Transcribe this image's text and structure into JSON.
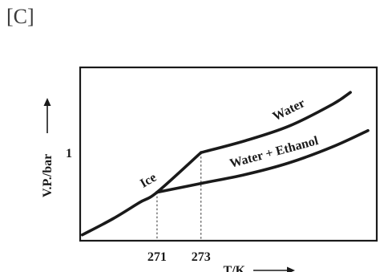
{
  "panel_label": "[C]",
  "chart_data": {
    "type": "line",
    "xlabel": "T/K",
    "ylabel": "V.P./bar",
    "x_ticks": [
      {
        "value": 271,
        "label": "271"
      },
      {
        "value": 273,
        "label": "273"
      }
    ],
    "y_ticks": [
      {
        "value": 1,
        "label": "1"
      }
    ],
    "xlim": [
      267.5,
      281
    ],
    "ylim": [
      0.4,
      1.58
    ],
    "axis_arrows": true,
    "grid": false,
    "series": [
      {
        "name": "Ice",
        "x": [
          267.6,
          269.0,
          270.2,
          271.0,
          273.0
        ],
        "y": [
          0.44,
          0.55,
          0.66,
          0.73,
          1.0
        ]
      },
      {
        "name": "Water",
        "x": [
          273.0,
          275.0,
          277.0,
          279.0,
          279.8
        ],
        "y": [
          1.0,
          1.08,
          1.18,
          1.33,
          1.41
        ]
      },
      {
        "name": "Water + Ethanol",
        "x": [
          271.0,
          273.0,
          275.0,
          277.0,
          279.0,
          280.6
        ],
        "y": [
          0.73,
          0.79,
          0.85,
          0.93,
          1.04,
          1.15
        ]
      }
    ],
    "guides": [
      {
        "x": 271,
        "y": 0.73
      },
      {
        "x": 273,
        "y": 1.0
      }
    ]
  }
}
